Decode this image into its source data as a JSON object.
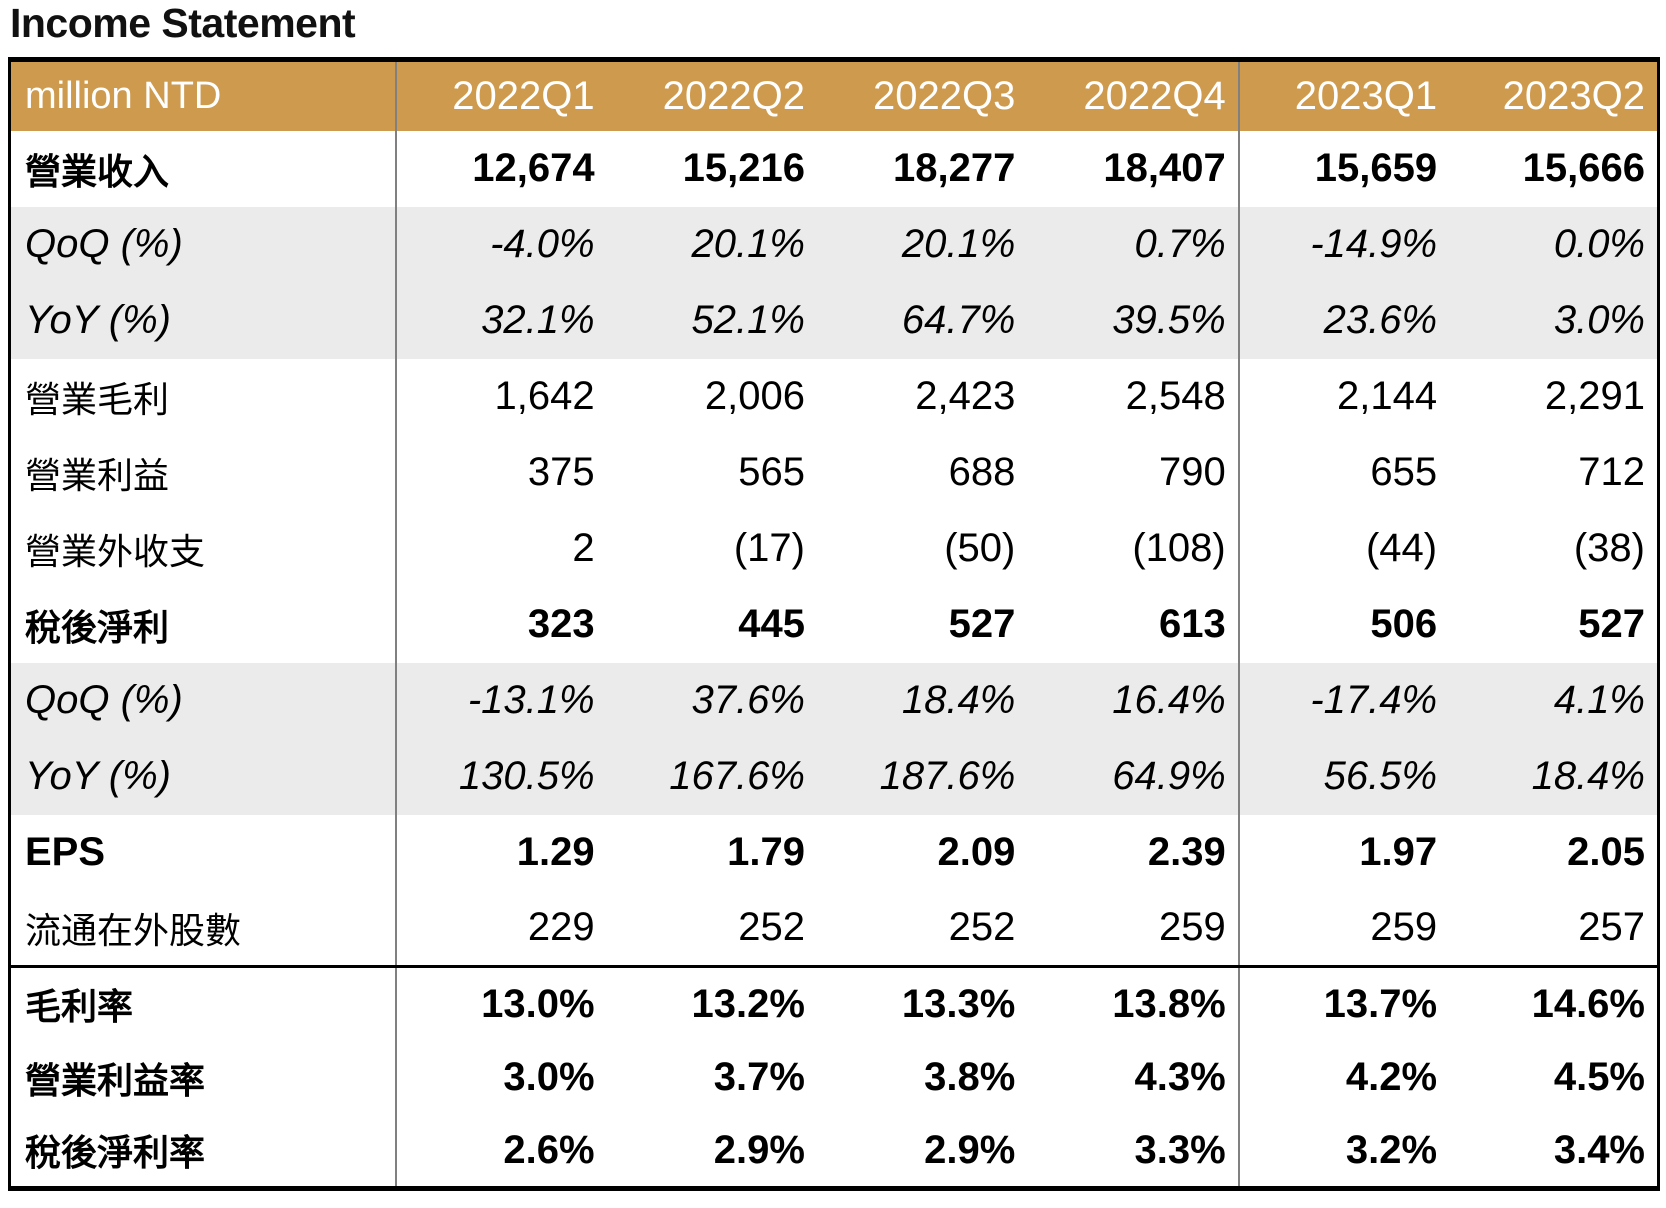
{
  "title": "Income Statement",
  "table": {
    "unit_label": "million NTD",
    "columns": [
      "2022Q1",
      "2022Q2",
      "2022Q3",
      "2022Q4",
      "2023Q1",
      "2023Q2"
    ],
    "rows": [
      {
        "label": "營業收入",
        "style": "bold",
        "values": [
          "12,674",
          "15,216",
          "18,277",
          "18,407",
          "15,659",
          "15,666"
        ]
      },
      {
        "label": "QoQ (%)",
        "style": "pct",
        "values": [
          "-4.0%",
          "20.1%",
          "20.1%",
          "0.7%",
          "-14.9%",
          "0.0%"
        ]
      },
      {
        "label": "YoY (%)",
        "style": "pct",
        "values": [
          "32.1%",
          "52.1%",
          "64.7%",
          "39.5%",
          "23.6%",
          "3.0%"
        ]
      },
      {
        "label": "營業毛利",
        "style": "normal",
        "values": [
          "1,642",
          "2,006",
          "2,423",
          "2,548",
          "2,144",
          "2,291"
        ]
      },
      {
        "label": "營業利益",
        "style": "normal",
        "values": [
          "375",
          "565",
          "688",
          "790",
          "655",
          "712"
        ]
      },
      {
        "label": "營業外收支",
        "style": "normal",
        "values": [
          "2",
          "(17)",
          "(50)",
          "(108)",
          "(44)",
          "(38)"
        ]
      },
      {
        "label": "稅後淨利",
        "style": "bold",
        "values": [
          "323",
          "445",
          "527",
          "613",
          "506",
          "527"
        ]
      },
      {
        "label": "QoQ (%)",
        "style": "pct",
        "values": [
          "-13.1%",
          "37.6%",
          "18.4%",
          "16.4%",
          "-17.4%",
          "4.1%"
        ]
      },
      {
        "label": "YoY (%)",
        "style": "pct",
        "values": [
          "130.5%",
          "167.6%",
          "187.6%",
          "64.9%",
          "56.5%",
          "18.4%"
        ]
      },
      {
        "label": "EPS",
        "style": "bold",
        "values": [
          "1.29",
          "1.79",
          "2.09",
          "2.39",
          "1.97",
          "2.05"
        ]
      },
      {
        "label": "流通在外股數",
        "style": "normal",
        "values": [
          "229",
          "252",
          "252",
          "259",
          "259",
          "257"
        ]
      },
      {
        "label": "毛利率",
        "style": "bold",
        "section_start": true,
        "ratio": true,
        "values": [
          "13.0%",
          "13.2%",
          "13.3%",
          "13.8%",
          "13.7%",
          "14.6%"
        ]
      },
      {
        "label": "營業利益率",
        "style": "bold",
        "ratio": true,
        "values": [
          "3.0%",
          "3.7%",
          "3.8%",
          "4.3%",
          "4.2%",
          "4.5%"
        ]
      },
      {
        "label": "稅後淨利率",
        "style": "bold",
        "ratio": true,
        "values": [
          "2.6%",
          "2.9%",
          "2.9%",
          "3.3%",
          "3.2%",
          "3.4%"
        ]
      }
    ],
    "stripe_row_labels": [
      "QoQ (%)",
      "YoY (%)"
    ],
    "colors": {
      "header_bg": "#CE9A4D",
      "header_text": "#FFFFFF",
      "stripe_bg": "#EBEBEB",
      "column_divider": "#808080",
      "border": "#000000"
    }
  }
}
